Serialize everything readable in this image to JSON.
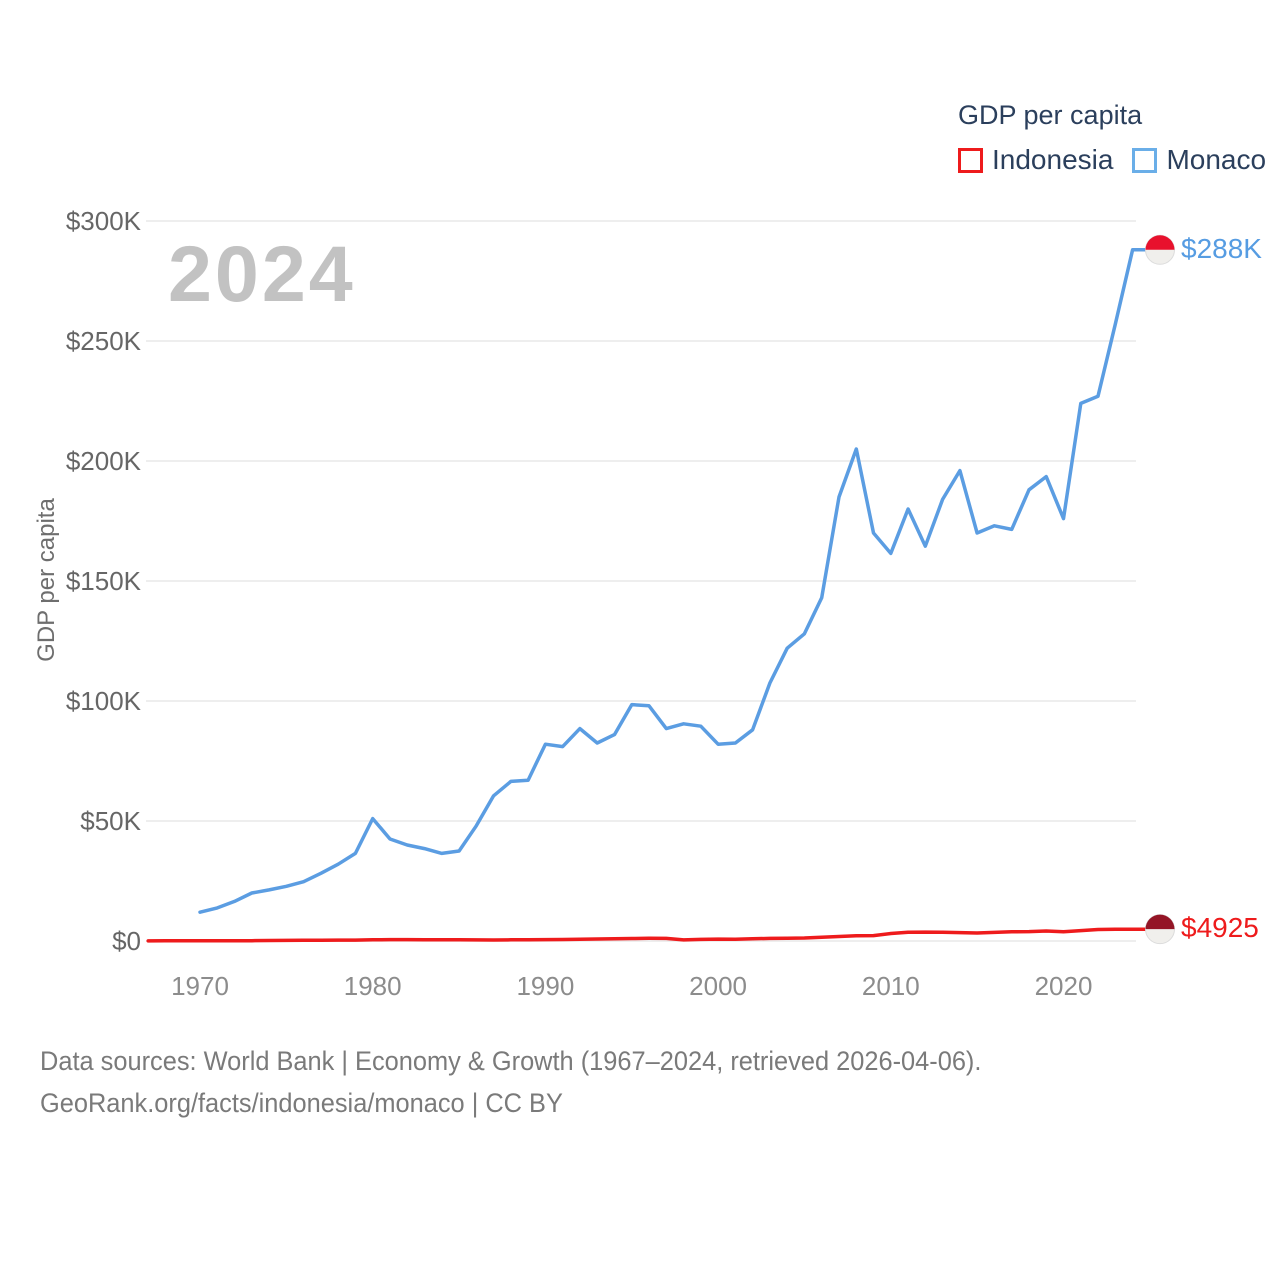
{
  "legend": {
    "title": "GDP per capita",
    "items": [
      {
        "label": "Indonesia",
        "color": "#ee1b1c"
      },
      {
        "label": "Monaco",
        "color": "#6aaee8"
      }
    ]
  },
  "watermark": "2024",
  "y_axis_title": "GDP per capita",
  "end_labels": {
    "monaco": "$288K",
    "indonesia": "$4925"
  },
  "footer": {
    "line1": "Data sources: World Bank | Economy & Growth (1967–2024, retrieved 2026-04-06).",
    "line2": "GeoRank.org/facts/indonesia/monaco | CC BY"
  },
  "colors": {
    "monaco_line": "#5b9de2",
    "indonesia_line": "#ee1b1c",
    "monaco_flag_red": "#e8112d",
    "indonesia_flag_red": "#941526",
    "flag_white": "#f0efec",
    "gridline": "#e8e8e8",
    "navy_text": "#2b3f5c",
    "watermark_gray": "#c2c2c2"
  },
  "chart_data": {
    "type": "line",
    "title": "GDP per capita",
    "ylabel": "GDP per capita",
    "xlabel": "",
    "grid": "horizontal",
    "legend_position": "top-right",
    "xlim": [
      1967,
      2024
    ],
    "ylim": [
      0,
      300000
    ],
    "x_ticks": [
      1970,
      1980,
      1990,
      2000,
      2010,
      2020
    ],
    "y_ticks": [
      {
        "v": 0,
        "label": "$0"
      },
      {
        "v": 50000,
        "label": "$50K"
      },
      {
        "v": 100000,
        "label": "$100K"
      },
      {
        "v": 150000,
        "label": "$150K"
      },
      {
        "v": 200000,
        "label": "$200K"
      },
      {
        "v": 250000,
        "label": "$250K"
      },
      {
        "v": 300000,
        "label": "$300K"
      }
    ],
    "x": [
      1967,
      1968,
      1969,
      1970,
      1971,
      1972,
      1973,
      1974,
      1975,
      1976,
      1977,
      1978,
      1979,
      1980,
      1981,
      1982,
      1983,
      1984,
      1985,
      1986,
      1987,
      1988,
      1989,
      1990,
      1991,
      1992,
      1993,
      1994,
      1995,
      1996,
      1997,
      1998,
      1999,
      2000,
      2001,
      2002,
      2003,
      2004,
      2005,
      2006,
      2007,
      2008,
      2009,
      2010,
      2011,
      2012,
      2013,
      2014,
      2015,
      2016,
      2017,
      2018,
      2019,
      2020,
      2021,
      2022,
      2023,
      2024
    ],
    "series": [
      {
        "name": "Indonesia",
        "color": "#ee1b1c",
        "flag_color": "#941526",
        "end_label": "$4925",
        "values": [
          55,
          70,
          79,
          80,
          80,
          92,
          127,
          204,
          232,
          278,
          334,
          363,
          371,
          492,
          567,
          583,
          514,
          527,
          513,
          475,
          434,
          482,
          527,
          585,
          633,
          698,
          828,
          912,
          1026,
          1137,
          1064,
          464,
          671,
          780,
          749,
          900,
          1066,
          1150,
          1263,
          1590,
          1860,
          2167,
          2261,
          3122,
          3643,
          3694,
          3624,
          3492,
          3332,
          3563,
          3838,
          3903,
          4151,
          3870,
          4334,
          4788,
          4876,
          4925
        ]
      },
      {
        "name": "Monaco",
        "color": "#5b9de2",
        "flag_color": "#e8112d",
        "end_label": "$288K",
        "values": [
          null,
          null,
          null,
          12000,
          13800,
          16500,
          20000,
          21300,
          22800,
          24700,
          28200,
          32000,
          36500,
          51000,
          42500,
          40000,
          38500,
          36500,
          37500,
          48000,
          60500,
          66500,
          67000,
          82000,
          81000,
          88500,
          82500,
          86000,
          98500,
          98000,
          88500,
          90500,
          89500,
          82000,
          82500,
          88000,
          107500,
          122000,
          128000,
          143000,
          185000,
          205000,
          170000,
          161500,
          180000,
          164500,
          184000,
          196000,
          170000,
          173000,
          171500,
          188000,
          193500,
          176000,
          224000,
          227000,
          257000,
          288000
        ]
      }
    ]
  }
}
